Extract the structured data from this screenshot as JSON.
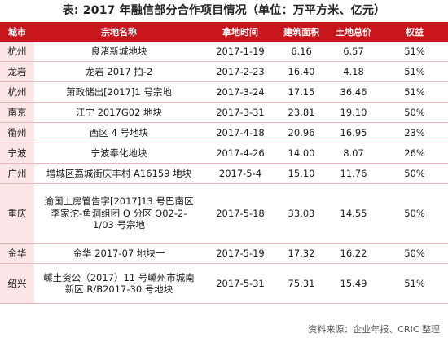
{
  "title": "表: 2017 年融信部分合作项目情况（单位：万平方米、亿元）",
  "table": {
    "headers": [
      "城市",
      "宗地名称",
      "拿地时间",
      "建筑面积",
      "土地总价",
      "权益"
    ],
    "rows": [
      {
        "city": "杭州",
        "name": "良渚新城地块",
        "date": "2017-1-19",
        "area": "6.16",
        "price": "6.57",
        "equity": "51%",
        "lines": 1
      },
      {
        "city": "龙岩",
        "name": "龙岩 2017 拍-2",
        "date": "2017-2-23",
        "area": "16.40",
        "price": "4.18",
        "equity": "51%",
        "lines": 1
      },
      {
        "city": "杭州",
        "name": "萧政储出[2017]1 号宗地",
        "date": "2017-3-24",
        "area": "17.15",
        "price": "36.46",
        "equity": "51%",
        "lines": 1
      },
      {
        "city": "南京",
        "name": "江宁 2017G02 地块",
        "date": "2017-3-31",
        "area": "23.81",
        "price": "19.10",
        "equity": "50%",
        "lines": 1
      },
      {
        "city": "衢州",
        "name": "西区 4 号地块",
        "date": "2017-4-18",
        "area": "20.96",
        "price": "16.95",
        "equity": "23%",
        "lines": 1
      },
      {
        "city": "宁波",
        "name": "宁波奉化地块",
        "date": "2017-4-26",
        "area": "14.00",
        "price": "8.07",
        "equity": "26%",
        "lines": 1
      },
      {
        "city": "广州",
        "name": "增城区荔城街庆丰村 A16159 地块",
        "date": "2017-5-4",
        "area": "15.10",
        "price": "11.76",
        "equity": "50%",
        "lines": 1
      },
      {
        "city": "重庆",
        "name": "渝国土房管告字[2017]13 号巴南区李家沱-鱼洞组团 Q 分区 Q02-2-1/03 号宗地",
        "date": "2017-5-18",
        "area": "33.03",
        "price": "14.55",
        "equity": "50%",
        "lines": 3
      },
      {
        "city": "金华",
        "name": "金华 2017-07 地块一",
        "date": "2017-5-19",
        "area": "17.32",
        "price": "16.22",
        "equity": "50%",
        "lines": 1
      },
      {
        "city": "绍兴",
        "name": "嵊土资公（2017）11 号嵊州市城南新区 R/B2017-30 号地块",
        "date": "2017-5-31",
        "area": "75.31",
        "price": "15.49",
        "equity": "51%",
        "lines": 2
      }
    ]
  },
  "source": "资料来源：企业年报、CRIC 整理",
  "colors": {
    "header_bg": "#c9161d",
    "city_bg": "#fbe5e6",
    "row_border": "#e6b9bb"
  }
}
